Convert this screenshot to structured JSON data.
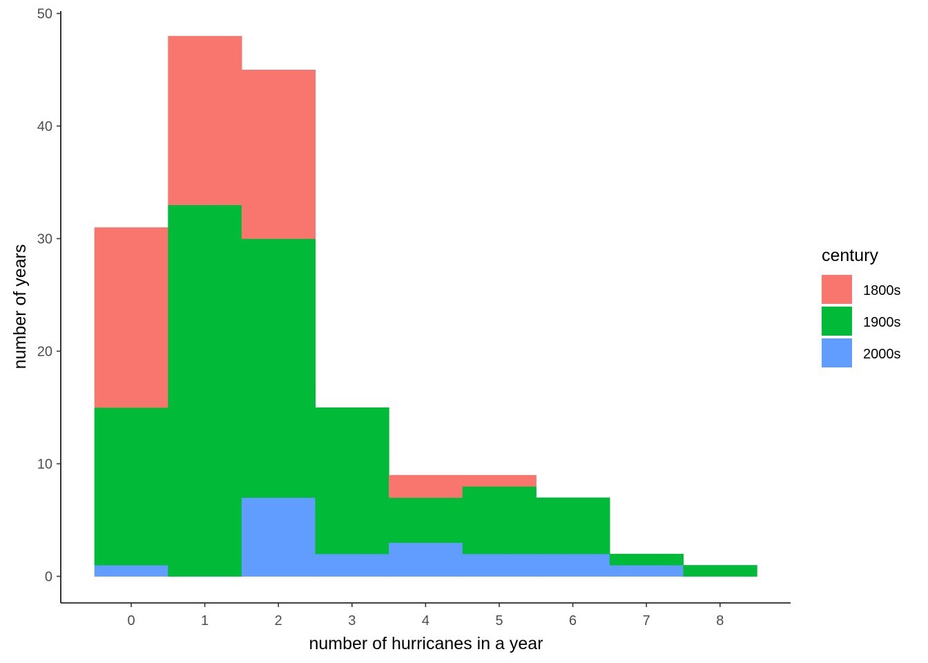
{
  "chart_data": {
    "type": "bar",
    "stacked": true,
    "categories": [
      0,
      1,
      2,
      3,
      4,
      5,
      6,
      7,
      8
    ],
    "xlabel": "number of hurricanes in a year",
    "ylabel": "number of years",
    "ylim": [
      0,
      50
    ],
    "y_ticks": [
      "0",
      "10",
      "20",
      "30",
      "40",
      "50"
    ],
    "x_ticks": [
      "0",
      "1",
      "2",
      "3",
      "4",
      "5",
      "6",
      "7",
      "8"
    ],
    "grid": false,
    "legend": {
      "title": "century",
      "placement": "right"
    },
    "series": [
      {
        "name": "2000s",
        "color": "#619CFF",
        "values": [
          1,
          0,
          7,
          2,
          3,
          2,
          2,
          1,
          0
        ]
      },
      {
        "name": "1900s",
        "color": "#00BA38",
        "values": [
          14,
          33,
          23,
          13,
          4,
          6,
          5,
          1,
          1
        ]
      },
      {
        "name": "1800s",
        "color": "#F8766D",
        "values": [
          16,
          15,
          15,
          0,
          2,
          1,
          0,
          0,
          0
        ]
      }
    ],
    "legend_order": [
      "1800s",
      "1900s",
      "2000s"
    ]
  }
}
